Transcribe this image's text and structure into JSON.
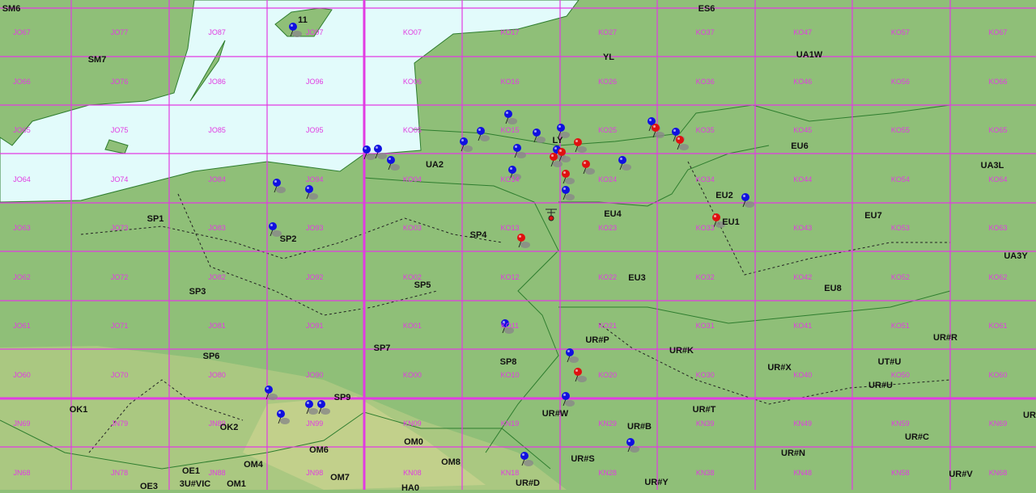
{
  "map": {
    "colors": {
      "land": "#8fbf78",
      "mountain": "#c9d58e",
      "sea": "#e2fbfb",
      "grid": "#e23be2",
      "border": "#2e7d2e",
      "pin_worked": "#1010e0",
      "pin_new": "#e01010"
    },
    "grid_labels": [
      [
        "JO67",
        "JO77",
        "JO87",
        "JO97",
        "KO07",
        "KO17",
        "KO27",
        "KO37",
        "KO47",
        "KO57",
        "KO67"
      ],
      [
        "JO66",
        "JO76",
        "JO86",
        "JO96",
        "KO06",
        "KO16",
        "KO26",
        "KO36",
        "KO46",
        "KO56",
        "KO66"
      ],
      [
        "JO65",
        "JO75",
        "JO85",
        "JO95",
        "KO05",
        "KO15",
        "KO25",
        "KO35",
        "KO45",
        "KO55",
        "KO65"
      ],
      [
        "JO64",
        "JO74",
        "JO84",
        "JO94",
        "KO04",
        "KO14",
        "KO24",
        "KO34",
        "KO44",
        "KO54",
        "KO64"
      ],
      [
        "JO63",
        "JO73",
        "JO83",
        "JO93",
        "KO03",
        "KO13",
        "KO23",
        "KO33",
        "KO43",
        "KO53",
        "KO63"
      ],
      [
        "JO62",
        "JO72",
        "JO82",
        "JO92",
        "KO02",
        "KO12",
        "KO22",
        "KO32",
        "KO42",
        "KO52",
        "KO62"
      ],
      [
        "JO61",
        "JO71",
        "JO81",
        "JO91",
        "KO01",
        "KO11",
        "KO21",
        "KO31",
        "KO41",
        "KO51",
        "KO61"
      ],
      [
        "JO60",
        "JO70",
        "JO80",
        "JO90",
        "KO00",
        "KO10",
        "KO20",
        "KO30",
        "KO40",
        "KO50",
        "KO60"
      ],
      [
        "JN69",
        "JN79",
        "JN89",
        "JN99",
        "KN09",
        "KN19",
        "KN29",
        "KN39",
        "KN49",
        "KN59",
        "KN69"
      ],
      [
        "JN68",
        "JN78",
        "JN88",
        "JN98",
        "KN08",
        "KN18",
        "KN28",
        "KN38",
        "KN48",
        "KN58",
        "KN68"
      ]
    ],
    "prefixes": [
      "SM6",
      "SM7",
      "11",
      "ES6",
      "YL",
      "UA1W",
      "SP1",
      "SP2",
      "SP3",
      "UA2",
      "LY",
      "SP4",
      "SP5",
      "EU4",
      "EU3",
      "EU2",
      "EU1",
      "EU6",
      "EU7",
      "EU8",
      "UA3L",
      "UA3Y",
      "SP6",
      "SP7",
      "SP8",
      "UR#P",
      "UR#K",
      "UR#X",
      "UT#U",
      "UR#U",
      "UR#R",
      "SP9",
      "OK1",
      "OK2",
      "OM0",
      "OM6",
      "OM8",
      "OM4",
      "OE1",
      "OM7",
      "OM1",
      "OE3",
      "3U#VIC",
      "HA0",
      "UR#W",
      "UR#B",
      "UR#T",
      "UR#S",
      "UR#D",
      "UR#Y",
      "UR#N",
      "UR#C",
      "UR#V",
      "UR"
    ]
  }
}
